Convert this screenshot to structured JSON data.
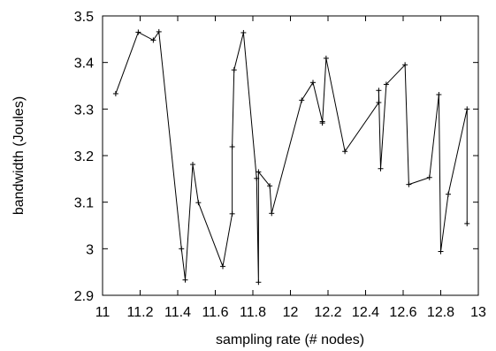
{
  "chart_data": {
    "type": "line",
    "title": "",
    "xlabel": "sampling rate (# nodes)",
    "ylabel": "bandwidth (Joules)",
    "xlim": [
      11,
      13
    ],
    "ylim": [
      2.9,
      3.5
    ],
    "x_ticks": [
      "11",
      "11.2",
      "11.4",
      "11.6",
      "11.8",
      "12",
      "12.2",
      "12.4",
      "12.6",
      "12.8",
      "13"
    ],
    "y_ticks": [
      "2.9",
      "3",
      "3.1",
      "3.2",
      "3.3",
      "3.4",
      "3.5"
    ],
    "grid": false,
    "legend": "none",
    "marker": "+",
    "line_color": "#000000",
    "series": [
      {
        "points": [
          [
            11.07,
            3.333
          ],
          [
            11.19,
            3.465
          ],
          [
            11.27,
            3.448
          ],
          [
            11.3,
            3.466
          ],
          [
            11.42,
            3.0
          ],
          [
            11.44,
            2.933
          ],
          [
            11.48,
            3.181
          ],
          [
            11.51,
            3.099
          ],
          [
            11.64,
            2.962
          ],
          [
            11.69,
            3.075
          ],
          [
            11.69,
            3.219
          ],
          [
            11.7,
            3.384
          ],
          [
            11.75,
            3.464
          ],
          [
            11.82,
            3.151
          ],
          [
            11.83,
            2.928
          ],
          [
            11.83,
            3.165
          ],
          [
            11.89,
            3.135
          ],
          [
            11.9,
            3.076
          ],
          [
            12.06,
            3.319
          ],
          [
            12.12,
            3.357
          ],
          [
            12.17,
            3.273
          ],
          [
            12.17,
            3.27
          ],
          [
            12.19,
            3.409
          ],
          [
            12.29,
            3.209
          ],
          [
            12.47,
            3.314
          ],
          [
            12.47,
            3.34
          ],
          [
            12.48,
            3.172
          ],
          [
            12.51,
            3.353
          ],
          [
            12.61,
            3.395
          ],
          [
            12.63,
            3.138
          ],
          [
            12.74,
            3.153
          ],
          [
            12.79,
            3.331
          ],
          [
            12.8,
            2.994
          ],
          [
            12.84,
            3.117
          ],
          [
            12.94,
            3.3
          ],
          [
            12.94,
            3.054
          ]
        ]
      }
    ]
  }
}
